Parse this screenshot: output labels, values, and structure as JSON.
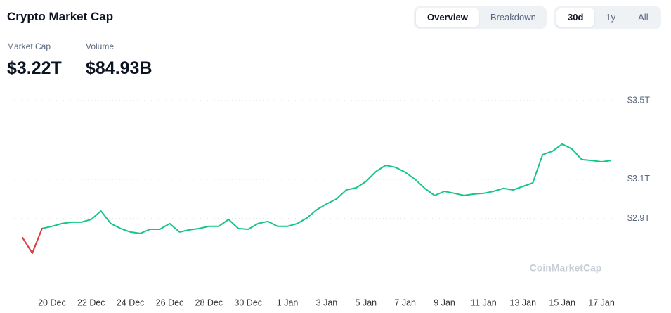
{
  "header": {
    "title": "Crypto Market Cap"
  },
  "tabs": {
    "view": [
      "Overview",
      "Breakdown"
    ],
    "range": [
      "30d",
      "1y",
      "All"
    ]
  },
  "stats": [
    {
      "label": "Market Cap",
      "value": "$3.22T"
    },
    {
      "label": "Volume",
      "value": "$84.93B"
    }
  ],
  "chart_data": {
    "type": "line",
    "categories": [
      null,
      null,
      null,
      "20 Dec",
      null,
      null,
      null,
      "22 Dec",
      null,
      null,
      null,
      "24 Dec",
      null,
      null,
      null,
      "26 Dec",
      null,
      null,
      null,
      "28 Dec",
      null,
      null,
      null,
      "30 Dec",
      null,
      null,
      null,
      "1 Jan",
      null,
      null,
      null,
      "3 Jan",
      null,
      null,
      null,
      "5 Jan",
      null,
      null,
      null,
      "7 Jan",
      null,
      null,
      null,
      "9 Jan",
      null,
      null,
      null,
      "11 Jan",
      null,
      null,
      null,
      "13 Jan",
      null,
      null,
      null,
      "15 Jan",
      null,
      null,
      null,
      "17 Jan",
      null
    ],
    "values": [
      2.804,
      2.725,
      2.85,
      2.861,
      2.875,
      2.882,
      2.882,
      2.896,
      2.939,
      2.875,
      2.85,
      2.832,
      2.825,
      2.846,
      2.846,
      2.875,
      2.832,
      2.843,
      2.85,
      2.861,
      2.861,
      2.896,
      2.85,
      2.846,
      2.875,
      2.886,
      2.861,
      2.861,
      2.875,
      2.904,
      2.946,
      2.975,
      3.0,
      3.046,
      3.057,
      3.089,
      3.139,
      3.171,
      3.161,
      3.136,
      3.1,
      3.054,
      3.018,
      3.039,
      3.029,
      3.018,
      3.025,
      3.029,
      3.039,
      3.054,
      3.046,
      3.064,
      3.082,
      3.225,
      3.243,
      3.279,
      3.254,
      3.2,
      3.196,
      3.189,
      3.196
    ],
    "color": "#16c784",
    "down_color": "#ea3943",
    "ylim": [
      2.546,
      3.582
    ],
    "yticks": [
      {
        "value": 3.5,
        "label": "$3.5T"
      },
      {
        "value": 3.1,
        "label": "$3.1T"
      },
      {
        "value": 2.9,
        "label": "$2.9T"
      }
    ],
    "grid": true,
    "watermark": "CoinMarketCap"
  }
}
